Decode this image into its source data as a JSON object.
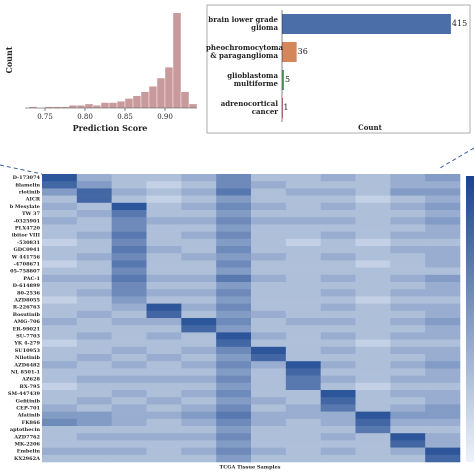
{
  "chart_data": [
    {
      "type": "histogram",
      "xlabel": "Prediction Score",
      "ylabel": "Count",
      "color": "#c99a9c",
      "bins": [
        0.72,
        0.73,
        0.74,
        0.75,
        0.76,
        0.77,
        0.78,
        0.79,
        0.8,
        0.81,
        0.82,
        0.83,
        0.84,
        0.85,
        0.86,
        0.87,
        0.88,
        0.89,
        0.9,
        0.91,
        0.92,
        0.93,
        0.94
      ],
      "values": [
        0,
        1,
        0,
        1,
        1,
        1,
        2,
        2,
        3,
        2,
        4,
        4,
        5,
        7,
        9,
        12,
        16,
        22,
        30,
        70,
        12,
        3
      ],
      "xlim": [
        0.725,
        0.94
      ],
      "xticks": [
        {
          "value": 0.75,
          "label": "0.75"
        },
        {
          "value": 0.8,
          "label": "0.80"
        },
        {
          "value": 0.85,
          "label": "0.85"
        },
        {
          "value": 0.9,
          "label": "0.90"
        }
      ],
      "ylim": [
        0,
        72
      ]
    },
    {
      "type": "barh",
      "xlabel": "Count",
      "categories": [
        "brain lower grade glioma",
        "pheochromocytoma & paraganglioma",
        "glioblastoma multiforme",
        "adrenocortical cancer"
      ],
      "values": [
        415,
        36,
        5,
        1
      ],
      "colors": [
        "#4c6ea8",
        "#d4875a",
        "#55a868",
        "#c44e52"
      ],
      "xlim": [
        0,
        425
      ]
    },
    {
      "type": "heatmap",
      "xlabel": "TCGA Tissue Samples",
      "rows": [
        "D-173074",
        "filamelin",
        "rlotinib",
        "AICR",
        "b Mesylate",
        "TW 37",
        "-0325901",
        "PLX4720",
        "ibitor VIII",
        "-530831",
        "GDC0941",
        "W 441756",
        "-4708671",
        "05-758807",
        "PAC-1",
        "D-614899",
        "80-2536",
        "AZD8055",
        "R-226763",
        "Bosutinib",
        "AMG-706",
        "ER-99021",
        "SU-7703",
        "YK 4-279",
        "SU10953",
        "Nilotinib",
        "AZD6482",
        "NL 8501-1",
        "AZ628",
        "BX-795",
        "SM-447439",
        "Gefitinib",
        "CEP-701",
        "Afatinib",
        "FK866",
        "aptothecin",
        "AZD7762",
        "MK-2206",
        "Embelin",
        "KX2962A"
      ],
      "values": [
        [
          0.9,
          0.4,
          0.3,
          0.3,
          0.4,
          0.6,
          0.3,
          0.3,
          0.4,
          0.3,
          0.4,
          0.5
        ],
        [
          0.8,
          0.5,
          0.3,
          0.2,
          0.3,
          0.6,
          0.4,
          0.3,
          0.3,
          0.3,
          0.4,
          0.4
        ],
        [
          0.5,
          0.8,
          0.4,
          0.3,
          0.4,
          0.7,
          0.3,
          0.4,
          0.4,
          0.3,
          0.5,
          0.5
        ],
        [
          0.3,
          0.8,
          0.3,
          0.2,
          0.3,
          0.5,
          0.3,
          0.3,
          0.3,
          0.2,
          0.3,
          0.4
        ],
        [
          0.4,
          0.3,
          0.9,
          0.3,
          0.4,
          0.6,
          0.4,
          0.3,
          0.4,
          0.3,
          0.4,
          0.5
        ],
        [
          0.3,
          0.4,
          0.7,
          0.3,
          0.3,
          0.5,
          0.3,
          0.3,
          0.3,
          0.3,
          0.3,
          0.4
        ],
        [
          0.4,
          0.3,
          0.6,
          0.4,
          0.4,
          0.6,
          0.4,
          0.4,
          0.4,
          0.3,
          0.4,
          0.5
        ],
        [
          0.3,
          0.3,
          0.6,
          0.3,
          0.3,
          0.5,
          0.3,
          0.3,
          0.3,
          0.3,
          0.3,
          0.4
        ],
        [
          0.3,
          0.4,
          0.7,
          0.3,
          0.4,
          0.6,
          0.3,
          0.3,
          0.4,
          0.3,
          0.4,
          0.4
        ],
        [
          0.2,
          0.3,
          0.6,
          0.3,
          0.3,
          0.5,
          0.3,
          0.2,
          0.3,
          0.2,
          0.3,
          0.3
        ],
        [
          0.3,
          0.3,
          0.7,
          0.4,
          0.3,
          0.6,
          0.3,
          0.3,
          0.3,
          0.3,
          0.4,
          0.4
        ],
        [
          0.3,
          0.4,
          0.6,
          0.3,
          0.4,
          0.5,
          0.4,
          0.3,
          0.4,
          0.3,
          0.3,
          0.4
        ],
        [
          0.2,
          0.3,
          0.7,
          0.3,
          0.3,
          0.6,
          0.3,
          0.3,
          0.3,
          0.2,
          0.3,
          0.4
        ],
        [
          0.3,
          0.3,
          0.6,
          0.3,
          0.3,
          0.5,
          0.3,
          0.3,
          0.3,
          0.3,
          0.3,
          0.3
        ],
        [
          0.4,
          0.4,
          0.7,
          0.4,
          0.4,
          0.7,
          0.4,
          0.3,
          0.4,
          0.3,
          0.4,
          0.5
        ],
        [
          0.3,
          0.3,
          0.6,
          0.3,
          0.3,
          0.5,
          0.3,
          0.3,
          0.3,
          0.3,
          0.3,
          0.4
        ],
        [
          0.3,
          0.4,
          0.6,
          0.4,
          0.4,
          0.6,
          0.3,
          0.3,
          0.4,
          0.3,
          0.4,
          0.4
        ],
        [
          0.2,
          0.3,
          0.5,
          0.3,
          0.3,
          0.5,
          0.3,
          0.3,
          0.3,
          0.2,
          0.3,
          0.3
        ],
        [
          0.3,
          0.3,
          0.4,
          0.9,
          0.4,
          0.6,
          0.3,
          0.3,
          0.4,
          0.3,
          0.4,
          0.4
        ],
        [
          0.3,
          0.4,
          0.3,
          0.8,
          0.3,
          0.5,
          0.4,
          0.3,
          0.3,
          0.3,
          0.3,
          0.4
        ],
        [
          0.4,
          0.3,
          0.4,
          0.4,
          0.9,
          0.6,
          0.3,
          0.4,
          0.4,
          0.3,
          0.4,
          0.5
        ],
        [
          0.3,
          0.3,
          0.3,
          0.3,
          0.8,
          0.5,
          0.3,
          0.3,
          0.3,
          0.3,
          0.3,
          0.4
        ],
        [
          0.3,
          0.4,
          0.3,
          0.4,
          0.3,
          0.9,
          0.4,
          0.3,
          0.4,
          0.3,
          0.4,
          0.4
        ],
        [
          0.2,
          0.3,
          0.3,
          0.3,
          0.3,
          0.8,
          0.3,
          0.3,
          0.3,
          0.2,
          0.3,
          0.3
        ],
        [
          0.3,
          0.3,
          0.4,
          0.3,
          0.4,
          0.6,
          0.9,
          0.3,
          0.4,
          0.3,
          0.4,
          0.4
        ],
        [
          0.3,
          0.4,
          0.3,
          0.4,
          0.3,
          0.5,
          0.8,
          0.3,
          0.3,
          0.3,
          0.3,
          0.4
        ],
        [
          0.4,
          0.3,
          0.4,
          0.3,
          0.4,
          0.6,
          0.4,
          0.9,
          0.4,
          0.3,
          0.4,
          0.5
        ],
        [
          0.3,
          0.3,
          0.3,
          0.3,
          0.3,
          0.5,
          0.3,
          0.8,
          0.3,
          0.3,
          0.3,
          0.4
        ],
        [
          0.3,
          0.4,
          0.4,
          0.4,
          0.4,
          0.6,
          0.3,
          0.7,
          0.4,
          0.3,
          0.4,
          0.4
        ],
        [
          0.2,
          0.3,
          0.3,
          0.3,
          0.3,
          0.5,
          0.3,
          0.7,
          0.3,
          0.2,
          0.3,
          0.3
        ],
        [
          0.3,
          0.3,
          0.4,
          0.3,
          0.4,
          0.6,
          0.3,
          0.3,
          0.9,
          0.3,
          0.4,
          0.4
        ],
        [
          0.3,
          0.4,
          0.3,
          0.4,
          0.3,
          0.5,
          0.4,
          0.3,
          0.8,
          0.3,
          0.3,
          0.4
        ],
        [
          0.4,
          0.3,
          0.4,
          0.3,
          0.4,
          0.6,
          0.3,
          0.4,
          0.7,
          0.3,
          0.4,
          0.5
        ],
        [
          0.5,
          0.5,
          0.4,
          0.4,
          0.5,
          0.7,
          0.4,
          0.4,
          0.4,
          0.9,
          0.5,
          0.5
        ],
        [
          0.6,
          0.5,
          0.4,
          0.3,
          0.4,
          0.6,
          0.4,
          0.3,
          0.4,
          0.8,
          0.4,
          0.4
        ],
        [
          0.3,
          0.3,
          0.3,
          0.3,
          0.3,
          0.5,
          0.3,
          0.3,
          0.3,
          0.7,
          0.3,
          0.3
        ],
        [
          0.3,
          0.4,
          0.4,
          0.4,
          0.4,
          0.6,
          0.3,
          0.3,
          0.4,
          0.3,
          0.9,
          0.4
        ],
        [
          0.3,
          0.3,
          0.3,
          0.3,
          0.3,
          0.5,
          0.3,
          0.3,
          0.3,
          0.3,
          0.8,
          0.4
        ],
        [
          0.4,
          0.4,
          0.4,
          0.3,
          0.4,
          0.6,
          0.4,
          0.3,
          0.4,
          0.3,
          0.4,
          0.9
        ],
        [
          0.3,
          0.3,
          0.3,
          0.3,
          0.3,
          0.5,
          0.3,
          0.3,
          0.3,
          0.3,
          0.3,
          0.8
        ]
      ]
    }
  ]
}
